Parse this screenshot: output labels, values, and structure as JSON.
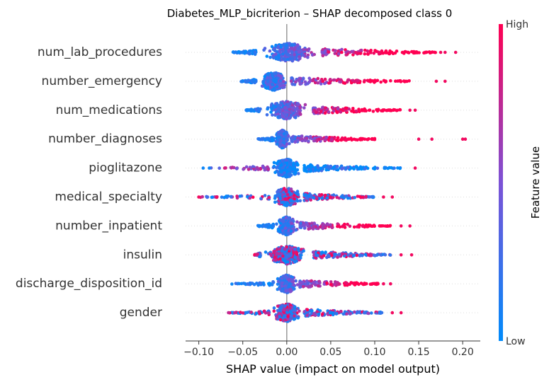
{
  "chart_data": {
    "type": "scatter",
    "subtype": "shap-beeswarm-summary",
    "title": "Diabetes_MLP_bicriterion – SHAP decomposed class 0",
    "xlabel": "SHAP value (impact on model output)",
    "xlim": [
      -0.115,
      0.22
    ],
    "xticks": [
      -0.1,
      -0.05,
      0.0,
      0.05,
      0.1,
      0.15,
      0.2
    ],
    "xtick_labels": [
      "−0.10",
      "−0.05",
      "0.00",
      "0.05",
      "0.10",
      "0.15",
      "0.20"
    ],
    "grid": false,
    "colorbar": {
      "label": "Feature value",
      "high_label": "High",
      "low_label": "Low",
      "low_color": "#008bfb",
      "mid_color": "#7c52d6",
      "high_color": "#ff0052"
    },
    "zero_line_color": "#999999",
    "features": [
      {
        "name": "num_lab_procedures",
        "min": -0.065,
        "max": 0.192,
        "core_left": -0.035,
        "core_right": 0.04,
        "tail_pos": 0.17,
        "high_side": "positive",
        "outliers": [
          0.175,
          0.18,
          0.192
        ]
      },
      {
        "name": "number_emergency",
        "min": -0.052,
        "max": 0.18,
        "core_left": -0.035,
        "core_right": 0.005,
        "tail_pos": 0.14,
        "high_side": "positive",
        "outliers": [
          0.17,
          0.18
        ]
      },
      {
        "name": "num_medications",
        "min": -0.047,
        "max": 0.146,
        "core_left": -0.03,
        "core_right": 0.03,
        "tail_pos": 0.13,
        "high_side": "positive",
        "outliers": [
          0.14,
          0.146
        ]
      },
      {
        "name": "number_diagnoses",
        "min": -0.033,
        "max": 0.203,
        "core_left": -0.015,
        "core_right": 0.005,
        "tail_pos": 0.1,
        "high_side": "positive",
        "outliers": [
          0.15,
          0.165,
          0.2,
          0.203
        ]
      },
      {
        "name": "pioglitazone",
        "min": -0.095,
        "max": 0.146,
        "core_left": -0.02,
        "core_right": 0.02,
        "tail_pos": 0.13,
        "high_side": "negative",
        "outliers": [
          -0.095,
          -0.088,
          0.146
        ]
      },
      {
        "name": "medical_specialty",
        "min": -0.1,
        "max": 0.12,
        "core_left": -0.02,
        "core_right": 0.02,
        "tail_pos": 0.1,
        "high_side": "mixed",
        "outliers": [
          -0.1,
          -0.08,
          0.11,
          0.12
        ]
      },
      {
        "name": "number_inpatient",
        "min": -0.037,
        "max": 0.14,
        "core_left": -0.015,
        "core_right": 0.015,
        "tail_pos": 0.12,
        "high_side": "positive",
        "outliers": [
          0.13,
          0.14
        ]
      },
      {
        "name": "insulin",
        "min": -0.037,
        "max": 0.142,
        "core_left": -0.03,
        "core_right": 0.03,
        "tail_pos": 0.12,
        "high_side": "mixed",
        "outliers": [
          0.13,
          0.142
        ]
      },
      {
        "name": "discharge_disposition_id",
        "min": -0.063,
        "max": 0.118,
        "core_left": -0.015,
        "core_right": 0.015,
        "tail_pos": 0.105,
        "high_side": "positive",
        "outliers": [
          0.11,
          0.118
        ]
      },
      {
        "name": "gender",
        "min": -0.068,
        "max": 0.13,
        "core_left": -0.02,
        "core_right": 0.02,
        "tail_pos": 0.11,
        "high_side": "mixed",
        "outliers": [
          0.12,
          0.13
        ]
      }
    ]
  }
}
